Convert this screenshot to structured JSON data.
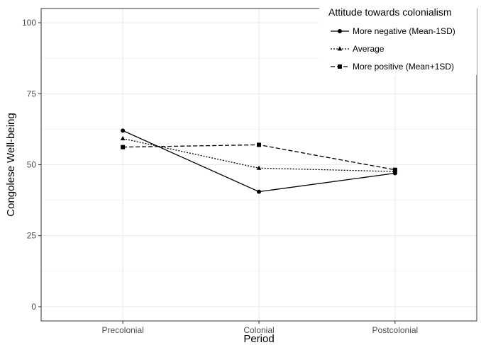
{
  "chart_data": {
    "type": "line",
    "categories": [
      "Precolonial",
      "Colonial",
      "Postcolonial"
    ],
    "xlabel": "Period",
    "ylabel": "Congolese Well-being",
    "ylim": [
      0,
      100
    ],
    "yticks": [
      0,
      25,
      50,
      75,
      100
    ],
    "grid": true,
    "legend": {
      "title": "Attitude towards colonialism",
      "placement": "top-right"
    },
    "series": [
      {
        "name": "More negative (Mean-1SD)",
        "values": [
          62,
          40.5,
          47
        ],
        "line_style": "solid",
        "marker": "circle"
      },
      {
        "name": "Average",
        "values": [
          59.2,
          48.8,
          47.6
        ],
        "line_style": "dotted",
        "marker": "triangle"
      },
      {
        "name": "More positive (Mean+1SD)",
        "values": [
          56.2,
          57,
          48.2
        ],
        "line_style": "dashed",
        "marker": "square"
      }
    ]
  }
}
